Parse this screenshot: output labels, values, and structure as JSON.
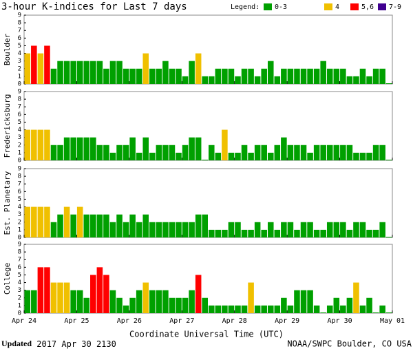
{
  "title": "3-hour K-indices for Last 7 days",
  "legend": {
    "label": "Legend:",
    "items": [
      {
        "label": "0-3",
        "color": "#00a000",
        "min": 0,
        "max": 3
      },
      {
        "label": "4",
        "color": "#f0c000",
        "min": 4,
        "max": 4
      },
      {
        "label": "5,6",
        "color": "#ff0000",
        "min": 5,
        "max": 6
      },
      {
        "label": "7-9",
        "color": "#400090",
        "min": 7,
        "max": 9
      }
    ]
  },
  "xlabel": "Coordinate Universal Time (UTC)",
  "footer": {
    "updated": "Updated",
    "time": "2017 Apr 30 2130",
    "source": "NOAA/SWPC Boulder, CO USA"
  },
  "chart_data": [
    {
      "type": "bar",
      "ylabel": "Boulder",
      "ylim": [
        0,
        9
      ],
      "yticks": [
        0,
        1,
        2,
        3,
        4,
        5,
        6,
        7,
        8,
        9
      ],
      "xlim": [
        0,
        56
      ],
      "xticks": [
        {
          "value": 0,
          "label": "Apr 24"
        },
        {
          "value": 8,
          "label": "Apr 25"
        },
        {
          "value": 16,
          "label": "Apr 26"
        },
        {
          "value": 24,
          "label": "Apr 27"
        },
        {
          "value": 32,
          "label": "Apr 28"
        },
        {
          "value": 40,
          "label": "Apr 29"
        },
        {
          "value": 48,
          "label": "Apr 30"
        },
        {
          "value": 56,
          "label": "May 01"
        }
      ],
      "values": [
        4,
        5,
        4,
        5,
        2,
        3,
        3,
        3,
        3,
        3,
        3,
        3,
        2,
        3,
        3,
        2,
        2,
        2,
        4,
        2,
        2,
        3,
        2,
        2,
        1,
        3,
        4,
        1,
        1,
        2,
        2,
        2,
        1,
        2,
        2,
        1,
        2,
        3,
        1,
        2,
        2,
        2,
        2,
        2,
        2,
        3,
        2,
        2,
        2,
        1,
        1,
        2,
        1,
        2,
        2,
        0
      ]
    },
    {
      "type": "bar",
      "ylabel": "Fredericksburg",
      "ylim": [
        0,
        9
      ],
      "yticks": [
        0,
        1,
        2,
        3,
        4,
        5,
        6,
        7,
        8,
        9
      ],
      "xlim": [
        0,
        56
      ],
      "values": [
        4,
        4,
        4,
        4,
        2,
        2,
        3,
        3,
        3,
        3,
        3,
        2,
        2,
        1,
        2,
        2,
        3,
        1,
        3,
        1,
        2,
        2,
        2,
        1,
        2,
        3,
        3,
        0,
        2,
        1,
        4,
        1,
        1,
        2,
        1,
        2,
        2,
        1,
        2,
        3,
        2,
        2,
        2,
        1,
        2,
        2,
        2,
        2,
        2,
        2,
        1,
        1,
        1,
        2,
        2,
        0
      ]
    },
    {
      "type": "bar",
      "ylabel": "Est. Planetary",
      "ylim": [
        0,
        9
      ],
      "yticks": [
        0,
        1,
        2,
        3,
        4,
        5,
        6,
        7,
        8,
        9
      ],
      "xlim": [
        0,
        56
      ],
      "values": [
        4,
        4,
        4,
        4,
        2,
        3,
        4,
        3,
        4,
        3,
        3,
        3,
        3,
        2,
        3,
        2,
        3,
        2,
        3,
        2,
        2,
        2,
        2,
        2,
        2,
        2,
        3,
        3,
        1,
        1,
        1,
        2,
        2,
        1,
        1,
        2,
        1,
        2,
        1,
        2,
        2,
        1,
        2,
        2,
        1,
        1,
        2,
        2,
        2,
        1,
        2,
        2,
        1,
        1,
        2,
        0
      ]
    },
    {
      "type": "bar",
      "ylabel": "College",
      "ylim": [
        0,
        9
      ],
      "yticks": [
        0,
        1,
        2,
        3,
        4,
        5,
        6,
        7,
        8,
        9
      ],
      "xlim": [
        0,
        56
      ],
      "values": [
        3,
        3,
        6,
        6,
        4,
        4,
        4,
        3,
        3,
        2,
        5,
        6,
        5,
        3,
        2,
        1,
        2,
        3,
        4,
        3,
        3,
        3,
        2,
        2,
        2,
        3,
        5,
        2,
        1,
        1,
        1,
        1,
        1,
        1,
        4,
        1,
        1,
        1,
        1,
        2,
        1,
        3,
        3,
        3,
        1,
        0,
        1,
        2,
        1,
        2,
        4,
        1,
        2,
        0,
        1,
        0
      ]
    }
  ]
}
